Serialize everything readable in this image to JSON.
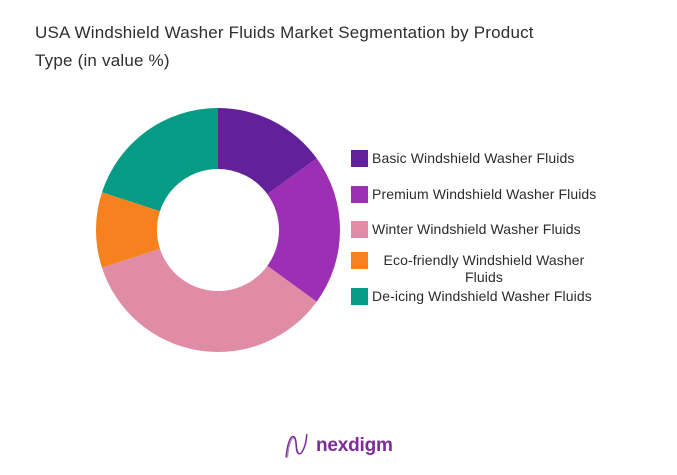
{
  "title_lines": {
    "line1": "USA Windshield Washer Fluids Market Segmentation by Product",
    "line2": "Type (in value %)"
  },
  "chart_data": {
    "type": "pie",
    "subtype": "donut",
    "title": "USA Windshield Washer Fluids Market Segmentation by Product Type (in value %)",
    "unit": "value %",
    "categories": [
      "Basic Windshield Washer Fluids",
      "Premium Windshield Washer Fluids",
      "Winter Windshield Washer Fluids",
      "Eco-friendly Windshield Washer Fluids",
      "De-icing Windshield Washer Fluids"
    ],
    "values": [
      15,
      20,
      35,
      10,
      20
    ],
    "colors": [
      "#62219B",
      "#9C2FB3",
      "#E08CA6",
      "#F5821F",
      "#069B84"
    ],
    "start_angle_deg": 0,
    "direction": "clockwise",
    "inner_radius_ratio": 0.5,
    "legend_position": "right",
    "value_labels_shown": false
  },
  "footer": {
    "brand": "nexdigm",
    "brand_color": "#7D2B95"
  }
}
